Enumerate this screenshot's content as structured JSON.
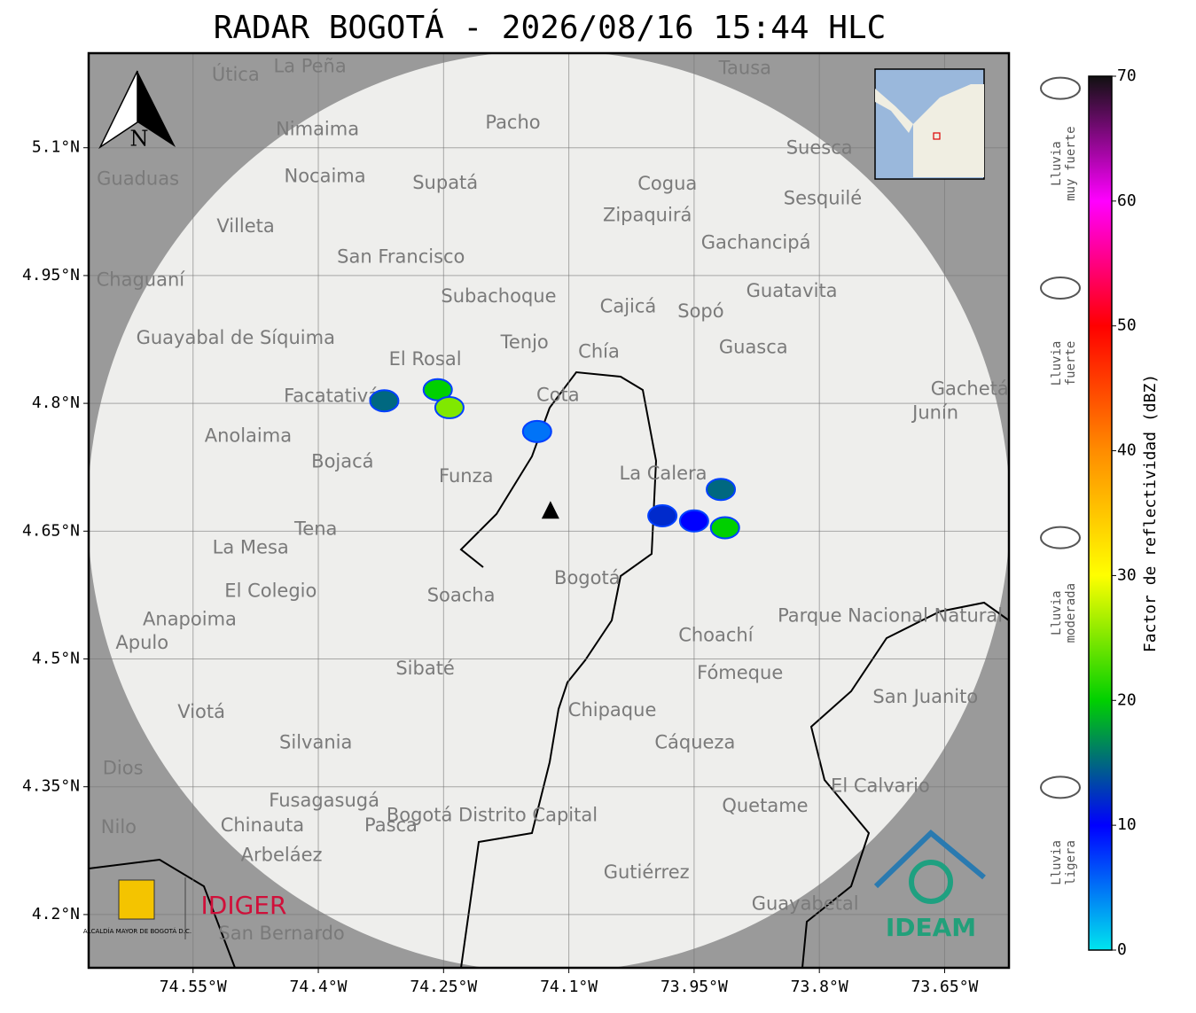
{
  "title": "RADAR BOGOTÁ - 2026/08/16 15:44 HLC",
  "north_label": "N",
  "map": {
    "xlim": [
      -74.675,
      -73.573
    ],
    "ylim": [
      4.1375,
      5.211
    ],
    "xticks": [
      {
        "value": -74.55,
        "label": "74.55°W"
      },
      {
        "value": -74.4,
        "label": "74.4°W"
      },
      {
        "value": -74.25,
        "label": "74.25°W"
      },
      {
        "value": -74.1,
        "label": "74.1°W"
      },
      {
        "value": -73.95,
        "label": "73.95°W"
      },
      {
        "value": -73.8,
        "label": "73.8°W"
      },
      {
        "value": -73.65,
        "label": "73.65°W"
      }
    ],
    "yticks": [
      {
        "value": 5.1,
        "label": "5.1°N"
      },
      {
        "value": 4.95,
        "label": "4.95°N"
      },
      {
        "value": 4.8,
        "label": "4.8°N"
      },
      {
        "value": 4.65,
        "label": "4.65°N"
      },
      {
        "value": 4.5,
        "label": "4.5°N"
      },
      {
        "value": 4.35,
        "label": "4.35°N"
      },
      {
        "value": 4.2,
        "label": "4.2°N"
      }
    ],
    "grid": true,
    "radar": {
      "lon": -74.122,
      "lat": 4.673
    },
    "places": [
      {
        "name": "La Peña",
        "lon": -74.41,
        "lat": 5.195
      },
      {
        "name": "Útica",
        "lon": -74.499,
        "lat": 5.185
      },
      {
        "name": "Tausa",
        "lon": -73.889,
        "lat": 5.193
      },
      {
        "name": "Pacho",
        "lon": -74.167,
        "lat": 5.129
      },
      {
        "name": "Nimaima",
        "lon": -74.401,
        "lat": 5.121
      },
      {
        "name": "Guaduas",
        "lon": -74.616,
        "lat": 5.063
      },
      {
        "name": "Nocaima",
        "lon": -74.392,
        "lat": 5.066
      },
      {
        "name": "Supatá",
        "lon": -74.248,
        "lat": 5.058
      },
      {
        "name": "Suesca",
        "lon": -73.8,
        "lat": 5.099
      },
      {
        "name": "Cogua",
        "lon": -73.982,
        "lat": 5.057
      },
      {
        "name": "Zipaquirá",
        "lon": -74.006,
        "lat": 5.02
      },
      {
        "name": "Sesquilé",
        "lon": -73.796,
        "lat": 5.04
      },
      {
        "name": "Villeta",
        "lon": -74.487,
        "lat": 5.007
      },
      {
        "name": "Gachancipá",
        "lon": -73.876,
        "lat": 4.988
      },
      {
        "name": "San Francisco",
        "lon": -74.301,
        "lat": 4.971
      },
      {
        "name": "Chaguaní",
        "lon": -74.613,
        "lat": 4.944
      },
      {
        "name": "Guatavita",
        "lon": -73.833,
        "lat": 4.931
      },
      {
        "name": "Subachoque",
        "lon": -74.184,
        "lat": 4.925
      },
      {
        "name": "Cajicá",
        "lon": -74.029,
        "lat": 4.913
      },
      {
        "name": "Sopó",
        "lon": -73.942,
        "lat": 4.907
      },
      {
        "name": "Guayabal de Síquima",
        "lon": -74.499,
        "lat": 4.876
      },
      {
        "name": "Tenjo",
        "lon": -74.153,
        "lat": 4.871
      },
      {
        "name": "Chía",
        "lon": -74.064,
        "lat": 4.86
      },
      {
        "name": "Guasca",
        "lon": -73.879,
        "lat": 4.865
      },
      {
        "name": "El Rosal",
        "lon": -74.272,
        "lat": 4.851
      },
      {
        "name": "Facatativá",
        "lon": -74.384,
        "lat": 4.808
      },
      {
        "name": "Cota",
        "lon": -74.113,
        "lat": 4.809
      },
      {
        "name": "Gachetá",
        "lon": -73.62,
        "lat": 4.816
      },
      {
        "name": "Junín",
        "lon": -73.661,
        "lat": 4.788
      },
      {
        "name": "Anolaima",
        "lon": -74.484,
        "lat": 4.761
      },
      {
        "name": "Bojacá",
        "lon": -74.371,
        "lat": 4.731
      },
      {
        "name": "Funza",
        "lon": -74.223,
        "lat": 4.714
      },
      {
        "name": "La Calera",
        "lon": -73.987,
        "lat": 4.717
      },
      {
        "name": "Tena",
        "lon": -74.403,
        "lat": 4.652
      },
      {
        "name": "La Mesa",
        "lon": -74.481,
        "lat": 4.63
      },
      {
        "name": "Bogotá",
        "lon": -74.078,
        "lat": 4.594
      },
      {
        "name": "Soacha",
        "lon": -74.229,
        "lat": 4.574
      },
      {
        "name": "El Colegio",
        "lon": -74.457,
        "lat": 4.579
      },
      {
        "name": "Parque Nacional Natural Chingaza",
        "lon": -73.66,
        "lat": 4.55
      },
      {
        "name": "Anapoima",
        "lon": -74.554,
        "lat": 4.546
      },
      {
        "name": "Apulo",
        "lon": -74.611,
        "lat": 4.518
      },
      {
        "name": "Choachí",
        "lon": -73.924,
        "lat": 4.527
      },
      {
        "name": "Sibaté",
        "lon": -74.272,
        "lat": 4.488
      },
      {
        "name": "Fómeque",
        "lon": -73.895,
        "lat": 4.483
      },
      {
        "name": "San Juanito",
        "lon": -73.673,
        "lat": 4.455
      },
      {
        "name": "Chipaque",
        "lon": -74.048,
        "lat": 4.439
      },
      {
        "name": "Viotá",
        "lon": -74.54,
        "lat": 4.437
      },
      {
        "name": "Silvania",
        "lon": -74.403,
        "lat": 4.401
      },
      {
        "name": "Cáqueza",
        "lon": -73.949,
        "lat": 4.401
      },
      {
        "name": "Dios",
        "lon": -74.634,
        "lat": 4.371
      },
      {
        "name": "El Calvario",
        "lon": -73.727,
        "lat": 4.35
      },
      {
        "name": "Fusagasugá",
        "lon": -74.393,
        "lat": 4.333
      },
      {
        "name": "Bogotá Distrito Capital",
        "lon": -74.192,
        "lat": 4.316
      },
      {
        "name": "Quetame",
        "lon": -73.865,
        "lat": 4.327
      },
      {
        "name": "Nilo",
        "lon": -74.639,
        "lat": 4.302
      },
      {
        "name": "Chinauta",
        "lon": -74.467,
        "lat": 4.304
      },
      {
        "name": "Pasca",
        "lon": -74.313,
        "lat": 4.304
      },
      {
        "name": "Arbeláez",
        "lon": -74.444,
        "lat": 4.269
      },
      {
        "name": "Gutiérrez",
        "lon": -74.007,
        "lat": 4.249
      },
      {
        "name": "Guayabetal",
        "lon": -73.817,
        "lat": 4.212
      },
      {
        "name": "San Bernardo",
        "lon": -74.444,
        "lat": 4.177
      }
    ],
    "echoes": [
      {
        "lon": -74.257,
        "lat": 4.816,
        "dbz": 20
      },
      {
        "lon": -74.243,
        "lat": 4.795,
        "dbz": 25
      },
      {
        "lon": -74.321,
        "lat": 4.803,
        "dbz": 15
      },
      {
        "lon": -74.138,
        "lat": 4.767,
        "dbz": 5
      },
      {
        "lon": -73.913,
        "lat": 4.654,
        "dbz": 20
      },
      {
        "lon": -73.95,
        "lat": 4.662,
        "dbz": 10
      },
      {
        "lon": -73.988,
        "lat": 4.668,
        "dbz": 12
      },
      {
        "lon": -73.918,
        "lat": 4.699,
        "dbz": 15
      }
    ]
  },
  "colorbar": {
    "label": "Factor de reflectividad (dBZ)",
    "clim": [
      0,
      70
    ],
    "ticks": [
      0,
      10,
      20,
      30,
      40,
      50,
      60,
      70
    ],
    "colors": [
      "#00e5ee",
      "#0000ff",
      "#00d000",
      "#ffff00",
      "#ff8c00",
      "#ff0000",
      "#ff00ff",
      "#111111"
    ]
  },
  "rain_labels": [
    {
      "lines": [
        "Lluvia",
        "muy fuerte"
      ],
      "dbz": 63
    },
    {
      "lines": [
        "Lluvia",
        "fuerte"
      ],
      "dbz": 47
    },
    {
      "lines": [
        "Lluvia",
        "moderada"
      ],
      "dbz": 27
    },
    {
      "lines": [
        "Lluvia",
        "ligera"
      ],
      "dbz": 7
    }
  ],
  "logos": {
    "alcaldia": "ALCALDÍA MAYOR DE BOGOTÁ D.C.",
    "idiger": "IDIGER",
    "ideam": "IDEAM"
  }
}
